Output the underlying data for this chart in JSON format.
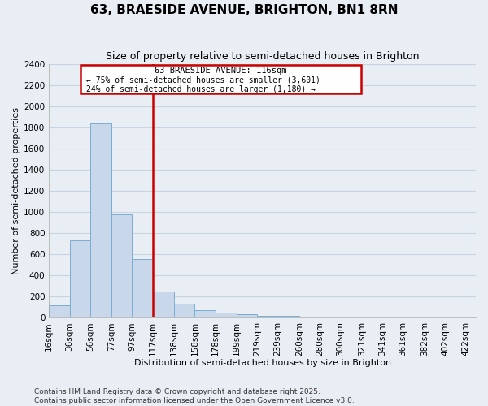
{
  "title": "63, BRAESIDE AVENUE, BRIGHTON, BN1 8RN",
  "subtitle": "Size of property relative to semi-detached houses in Brighton",
  "xlabel": "Distribution of semi-detached houses by size in Brighton",
  "ylabel": "Number of semi-detached properties",
  "annotation_title": "63 BRAESIDE AVENUE: 116sqm",
  "annotation_smaller": "← 75% of semi-detached houses are smaller (3,601)",
  "annotation_larger": "24% of semi-detached houses are larger (1,180) →",
  "bar_left_edges": [
    16,
    36,
    56,
    77,
    97,
    117,
    138,
    158,
    178,
    199,
    219,
    239,
    260,
    280,
    300,
    321,
    341,
    361,
    382,
    402
  ],
  "bar_widths": [
    20,
    20,
    21,
    20,
    20,
    21,
    20,
    20,
    21,
    20,
    20,
    21,
    20,
    20,
    21,
    20,
    20,
    21,
    20,
    20
  ],
  "bar_heights": [
    120,
    730,
    1840,
    980,
    560,
    250,
    130,
    75,
    50,
    30,
    20,
    15,
    10,
    0,
    0,
    0,
    0,
    0,
    0,
    0
  ],
  "bar_color": "#c8d8ea",
  "bar_edge_color": "#7aaed4",
  "vline_color": "#cc0000",
  "vline_x": 117,
  "annotation_box_facecolor": "white",
  "annotation_box_edgecolor": "#cc0000",
  "grid_color": "#c8d4e0",
  "bg_color": "#e8eef4",
  "plot_bg_color": "#e8eef4",
  "ylim": [
    0,
    2400
  ],
  "xlim": [
    16,
    432
  ],
  "yticks": [
    0,
    200,
    400,
    600,
    800,
    1000,
    1200,
    1400,
    1600,
    1800,
    2000,
    2200,
    2400
  ],
  "xtick_labels": [
    "16sqm",
    "36sqm",
    "56sqm",
    "77sqm",
    "97sqm",
    "117sqm",
    "138sqm",
    "158sqm",
    "178sqm",
    "199sqm",
    "219sqm",
    "239sqm",
    "260sqm",
    "280sqm",
    "300sqm",
    "321sqm",
    "341sqm",
    "361sqm",
    "382sqm",
    "402sqm",
    "422sqm"
  ],
  "xtick_positions": [
    16,
    36,
    56,
    77,
    97,
    117,
    138,
    158,
    178,
    199,
    219,
    239,
    260,
    280,
    300,
    321,
    341,
    361,
    382,
    402,
    422
  ],
  "footer_text": "Contains HM Land Registry data © Crown copyright and database right 2025.\nContains public sector information licensed under the Open Government Licence v3.0.",
  "title_fontsize": 11,
  "subtitle_fontsize": 9,
  "axis_label_fontsize": 8,
  "tick_fontsize": 7.5,
  "footer_fontsize": 6.5
}
